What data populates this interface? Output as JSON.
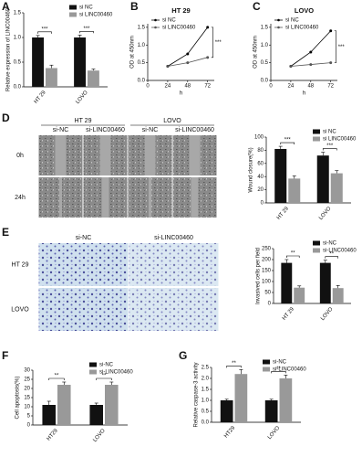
{
  "chart_data": [
    {
      "type": "bar",
      "label": "A",
      "ylabel": "Relative expression of LINC00460",
      "categories": [
        "HT 29",
        "LOVO"
      ],
      "series": [
        {
          "name": "si NC",
          "color": "#111111",
          "values": [
            1.0,
            1.0
          ],
          "errors": [
            0.04,
            0.05
          ]
        },
        {
          "name": "si LINC00460",
          "color": "#999999",
          "values": [
            0.38,
            0.33
          ],
          "errors": [
            0.06,
            0.03
          ]
        }
      ],
      "annotations": [
        "***",
        "***"
      ],
      "ylim": [
        0,
        1.5
      ],
      "yticks": [
        {
          "value": 0,
          "label": "0.0"
        },
        0.5,
        {
          "value": 1,
          "label": "1.0"
        },
        1.5
      ]
    },
    {
      "type": "line",
      "label": "B",
      "title": "HT 29",
      "ylabel": "OD at 450nm",
      "xlabel": "h",
      "x": [
        24,
        48,
        72
      ],
      "series": [
        {
          "name": "si NC",
          "color": "#000000",
          "values": [
            0.4,
            0.75,
            1.5
          ]
        },
        {
          "name": "si LINC00460",
          "color": "#555555",
          "values": [
            0.4,
            0.5,
            0.65
          ]
        }
      ],
      "annotation": "***",
      "xlim": [
        0,
        80
      ],
      "xticks": [
        0,
        24,
        48,
        72
      ],
      "ylim": [
        0,
        1.6
      ],
      "yticks": [
        {
          "value": 0,
          "label": "0.0"
        },
        0.5,
        {
          "value": 1,
          "label": "1.0"
        },
        1.5
      ]
    },
    {
      "type": "line",
      "label": "C",
      "title": "LOVO",
      "ylabel": "OD at 450nm",
      "xlabel": "h",
      "x": [
        24,
        48,
        72
      ],
      "series": [
        {
          "name": "si NC",
          "color": "#000000",
          "values": [
            0.4,
            0.8,
            1.4
          ]
        },
        {
          "name": "si LINC00460",
          "color": "#555555",
          "values": [
            0.4,
            0.45,
            0.5
          ]
        }
      ],
      "annotation": "***",
      "xlim": [
        0,
        80
      ],
      "xticks": [
        0,
        24,
        48,
        72
      ],
      "ylim": [
        0,
        1.6
      ],
      "yticks": [
        {
          "value": 0,
          "label": "0.0"
        },
        0.5,
        {
          "value": 1,
          "label": "1.0"
        },
        1.5
      ]
    },
    {
      "type": "bar",
      "ylabel": "Wound closure(%)",
      "categories": [
        "HT 29",
        "LOVO"
      ],
      "series": [
        {
          "name": "si NC",
          "color": "#111111",
          "values": [
            82,
            72
          ],
          "errors": [
            4,
            5
          ]
        },
        {
          "name": "si LINC00460",
          "color": "#999999",
          "values": [
            37,
            45
          ],
          "errors": [
            4,
            4
          ]
        }
      ],
      "annotations": [
        "***",
        "***"
      ],
      "ylim": [
        0,
        100
      ],
      "yticks": [
        0,
        20,
        40,
        60,
        80,
        100
      ]
    },
    {
      "type": "bar",
      "ylabel": "Invasived cells per field",
      "categories": [
        "HT 29",
        "LOVO"
      ],
      "series": [
        {
          "name": "si-NC",
          "color": "#111111",
          "values": [
            185,
            185
          ],
          "errors": [
            15,
            12
          ]
        },
        {
          "name": "si-LINC00460",
          "color": "#999999",
          "values": [
            72,
            70
          ],
          "errors": [
            8,
            12
          ]
        }
      ],
      "annotations": [
        "**",
        "**"
      ],
      "ylim": [
        0,
        250
      ],
      "yticks": [
        0,
        50,
        100,
        150,
        200,
        250
      ]
    },
    {
      "type": "bar",
      "label": "F",
      "ylabel": "Cell apoptosis(%)",
      "categories": [
        "HT29",
        "LOVO"
      ],
      "series": [
        {
          "name": "si-NC",
          "color": "#111111",
          "values": [
            11,
            11
          ],
          "errors": [
            2,
            1
          ]
        },
        {
          "name": "si-LINC00460",
          "color": "#999999",
          "values": [
            22,
            22
          ],
          "errors": [
            1.5,
            1.5
          ]
        }
      ],
      "annotations": [
        "**",
        "**"
      ],
      "ylim": [
        0,
        30
      ],
      "yticks": [
        0,
        5,
        10,
        15,
        20,
        25,
        30
      ]
    },
    {
      "type": "bar",
      "label": "G",
      "ylabel": "Relative caspase-3 activity",
      "categories": [
        "HT29",
        "LOVO"
      ],
      "series": [
        {
          "name": "si-NC",
          "color": "#111111",
          "values": [
            1.0,
            1.0
          ],
          "errors": [
            0.05,
            0.05
          ]
        },
        {
          "name": "si-LINC00460",
          "color": "#999999",
          "values": [
            2.2,
            2.0
          ],
          "errors": [
            0.2,
            0.15
          ]
        }
      ],
      "annotations": [
        "**",
        "**"
      ],
      "ylim": [
        0,
        2.5
      ],
      "yticks": [
        {
          "value": 0,
          "label": "0.0"
        },
        0.5,
        {
          "value": 1,
          "label": "1.0"
        },
        1.5,
        {
          "value": 2,
          "label": "2.0"
        },
        2.5
      ]
    }
  ],
  "images": [
    {
      "label": "D",
      "column_groups": [
        "HT 29",
        "LOVO"
      ],
      "columns": [
        "si-NC",
        "si-LINC00460",
        "si-NC",
        "si-LINC00460"
      ],
      "rows": [
        "0h",
        "24h"
      ]
    },
    {
      "label": "E",
      "columns": [
        "si-NC",
        "si-LINC00460"
      ],
      "rows": [
        "HT 29",
        "LOVO"
      ]
    }
  ]
}
